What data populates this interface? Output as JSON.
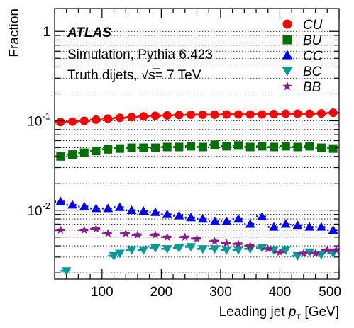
{
  "chart_data": {
    "type": "scatter",
    "title": "",
    "xlabel": {
      "prefix": "Leading jet ",
      "var": "p",
      "sub": "T",
      "suffix": " [GeV]"
    },
    "ylabel": "Fraction",
    "xlim": [
      20,
      500
    ],
    "ylim": [
      0.0017,
      1.8
    ],
    "yscale": "log",
    "grid": "horizontal dotted",
    "legend_position": "top-right",
    "x_ticks": [
      100,
      200,
      300,
      400,
      500
    ],
    "x_tick_labels": [
      "100",
      "200",
      "300",
      "400",
      "500"
    ],
    "y_ticks": [
      0.01,
      0.1,
      1
    ],
    "y_tick_labels": [
      {
        "base": "10",
        "exp": "-2"
      },
      {
        "base": "10",
        "exp": "-1"
      },
      {
        "base": "1",
        "exp": ""
      }
    ],
    "annotations": {
      "experiment": "ATLAS",
      "line1": "Simulation, Pythia 6.423",
      "line2_prefix": "Truth dijets, ",
      "line2_sqrt": "√",
      "line2_s": "s",
      "line2_suffix": "= 7 TeV"
    },
    "series": [
      {
        "name": "CU",
        "color": "#ff0000",
        "marker": "circle",
        "line_style": "solid",
        "x": [
          30,
          50,
          70,
          90,
          110,
          130,
          150,
          170,
          190,
          210,
          230,
          250,
          270,
          290,
          310,
          330,
          350,
          370,
          390,
          410,
          430,
          450,
          470,
          490
        ],
        "y": [
          0.097,
          0.098,
          0.1,
          0.103,
          0.106,
          0.108,
          0.11,
          0.112,
          0.114,
          0.115,
          0.116,
          0.117,
          0.117,
          0.117,
          0.118,
          0.118,
          0.118,
          0.118,
          0.119,
          0.12,
          0.12,
          0.12,
          0.121,
          0.123
        ]
      },
      {
        "name": "BU",
        "color": "#007000",
        "marker": "square",
        "line_style": "dashed",
        "x": [
          30,
          50,
          70,
          90,
          110,
          130,
          150,
          170,
          190,
          210,
          230,
          250,
          270,
          290,
          310,
          330,
          350,
          370,
          390,
          410,
          430,
          450,
          470,
          490
        ],
        "y": [
          0.04,
          0.042,
          0.044,
          0.046,
          0.048,
          0.049,
          0.05,
          0.05,
          0.05,
          0.051,
          0.051,
          0.052,
          0.051,
          0.054,
          0.052,
          0.053,
          0.051,
          0.052,
          0.051,
          0.052,
          0.051,
          0.052,
          0.05,
          0.049
        ]
      },
      {
        "name": "CC",
        "color": "#0000ff",
        "marker": "triangle-up",
        "line_style": "dotted",
        "x": [
          30,
          50,
          70,
          90,
          110,
          130,
          150,
          170,
          190,
          210,
          230,
          250,
          270,
          290,
          310,
          330,
          350,
          370,
          390,
          410,
          430,
          450,
          470,
          490
        ],
        "y": [
          0.0125,
          0.0115,
          0.011,
          0.0105,
          0.0105,
          0.0108,
          0.01,
          0.0098,
          0.0095,
          0.009,
          0.0087,
          0.0083,
          0.008,
          0.0075,
          0.0075,
          0.008,
          0.007,
          0.0085,
          0.0065,
          0.007,
          0.0068,
          0.0065,
          0.0065,
          0.006
        ]
      },
      {
        "name": "BC",
        "color": "#009a9a",
        "marker": "triangle-down",
        "line_style": "dashed",
        "x": [
          40,
          120,
          130,
          150,
          170,
          190,
          210,
          230,
          250,
          270,
          290,
          310,
          330,
          350,
          370,
          390,
          410,
          430,
          450,
          470,
          490
        ],
        "y": [
          0.0021,
          0.0031,
          0.0033,
          0.0036,
          0.0036,
          0.0038,
          0.0037,
          0.0038,
          0.0039,
          0.0037,
          0.0037,
          0.0036,
          0.0036,
          0.0037,
          0.0038,
          0.0036,
          0.0036,
          0.0031,
          0.0034,
          0.0032,
          0.0033
        ]
      },
      {
        "name": "BB",
        "color": "#8b1a8b",
        "marker": "star",
        "line_style": "dashdot",
        "x": [
          30,
          70,
          90,
          110,
          140,
          160,
          190,
          210,
          240,
          260,
          290,
          310,
          330,
          350,
          380,
          400,
          440,
          460,
          480,
          495
        ],
        "y": [
          0.006,
          0.006,
          0.0062,
          0.0055,
          0.0055,
          0.0053,
          0.0053,
          0.005,
          0.005,
          0.0048,
          0.0045,
          0.0043,
          0.0042,
          0.004,
          0.0037,
          0.0034,
          0.0033,
          0.0033,
          0.0036,
          0.0036
        ]
      }
    ]
  }
}
